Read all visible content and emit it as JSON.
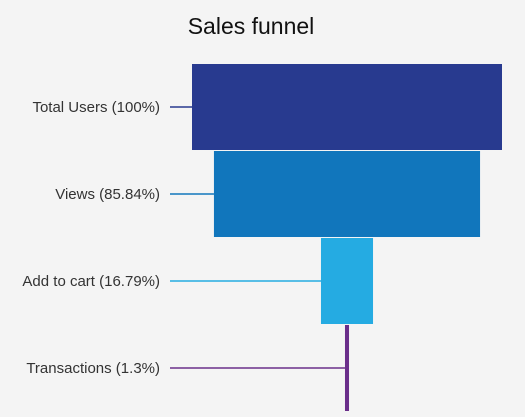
{
  "chart_data": {
    "type": "funnel",
    "title": "Sales funnel",
    "stages": [
      {
        "label": "Total Users (100%)",
        "value": 100,
        "color": "#283a8f"
      },
      {
        "label": "Views (85.84%)",
        "value": 85.84,
        "color": "#1176bc"
      },
      {
        "label": "Add to cart (16.79%)",
        "value": 16.79,
        "color": "#25abe2"
      },
      {
        "label": "Transactions (1.3%)",
        "value": 1.3,
        "color": "#6a2e8a"
      }
    ]
  }
}
